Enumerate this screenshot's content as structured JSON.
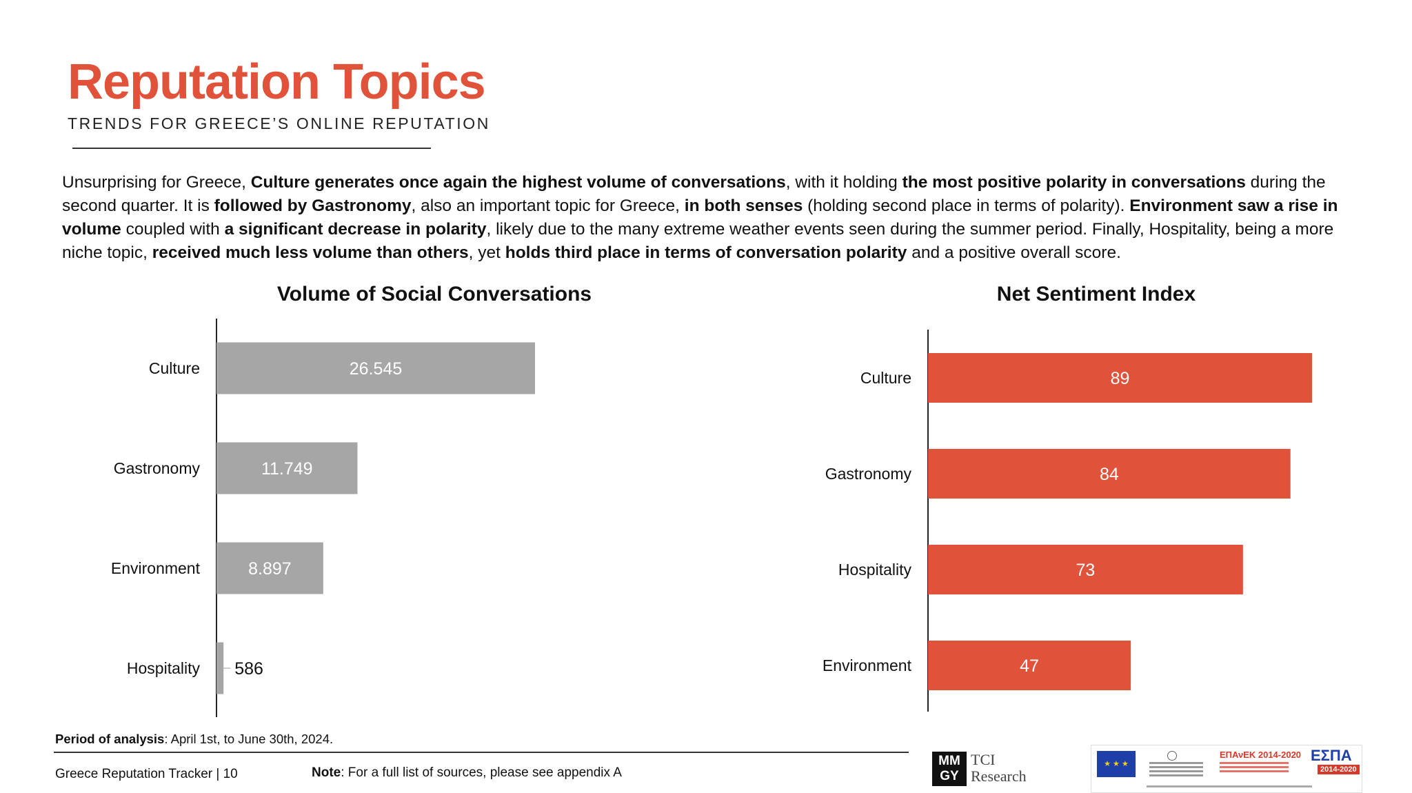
{
  "header": {
    "title": "Reputation Topics",
    "subtitle": "TRENDS FOR GREECE’S ONLINE REPUTATION"
  },
  "intro": {
    "segments": [
      {
        "text": "Unsurprising for Greece, ",
        "bold": false
      },
      {
        "text": "Culture generates once again the highest volume of conversations",
        "bold": true
      },
      {
        "text": ", with it holding ",
        "bold": false
      },
      {
        "text": "the most positive polarity in conversations",
        "bold": true
      },
      {
        "text": " during the second quarter. It is ",
        "bold": false
      },
      {
        "text": "followed by Gastronomy",
        "bold": true
      },
      {
        "text": ", also an important topic for Greece, ",
        "bold": false
      },
      {
        "text": "in both senses",
        "bold": true
      },
      {
        "text": " (holding second place in terms of polarity). ",
        "bold": false
      },
      {
        "text": "Environment saw a rise in volume",
        "bold": true
      },
      {
        "text": " coupled with ",
        "bold": false
      },
      {
        "text": "a significant decrease in polarity",
        "bold": true
      },
      {
        "text": ", likely due to the many extreme weather events seen during the summer period. Finally, Hospitality, being a more niche topic, ",
        "bold": false
      },
      {
        "text": "received much less volume than others",
        "bold": true
      },
      {
        "text": ", yet ",
        "bold": false
      },
      {
        "text": "holds third place in terms of conversation polarity",
        "bold": true
      },
      {
        "text": " and a positive overall score.",
        "bold": false
      }
    ]
  },
  "chart_data": [
    {
      "type": "bar",
      "orientation": "horizontal",
      "title": "Volume of Social Conversations",
      "categories": [
        "Culture",
        "Gastronomy",
        "Environment",
        "Hospitality"
      ],
      "values": [
        26545,
        11749,
        8897,
        586
      ],
      "data_labels": [
        "26.545",
        "11.749",
        "8.897",
        "586"
      ],
      "xlim": [
        0,
        26545
      ],
      "color": "#a6a6a6",
      "grid": false,
      "legend": "none"
    },
    {
      "type": "bar",
      "orientation": "horizontal",
      "title": "Net Sentiment Index",
      "categories": [
        "Culture",
        "Gastronomy",
        "Hospitality",
        "Environment"
      ],
      "values": [
        89,
        84,
        73,
        47
      ],
      "data_labels": [
        "89",
        "84",
        "73",
        "47"
      ],
      "xlim": [
        0,
        89
      ],
      "color": "#e0533a",
      "grid": false,
      "legend": "none"
    }
  ],
  "footer": {
    "period_label": "Period of analysis",
    "period_value": ": April 1st, to June 30th, 2024.",
    "tracker": "Greece Reputation Tracker |  10",
    "note_label": "Note",
    "note_value": ": For a full list of sources, please see appendix A"
  },
  "logos": {
    "mmgy_line1": "MM",
    "mmgy_line2": "GY",
    "tci_line1": "TCI",
    "tci_line2": "Research",
    "epanek": "ΕΠΑνΕΚ 2014-2020",
    "espa": "ΕΣΠΑ",
    "espa_years": "2014-2020"
  }
}
